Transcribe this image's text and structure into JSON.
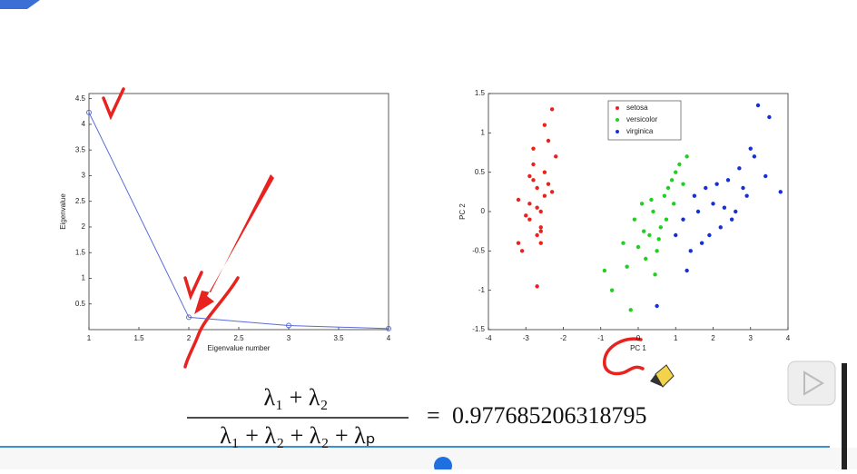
{
  "chart_data": [
    {
      "type": "line",
      "xlabel": "Eigenvalue number",
      "ylabel": "Eigenvalue",
      "x": [
        1,
        2,
        3,
        4
      ],
      "values": [
        4.23,
        0.24,
        0.08,
        0.02
      ],
      "color": "#5b6bd8",
      "xlim": [
        1,
        4
      ],
      "xticks": [
        1,
        1.5,
        2,
        2.5,
        3,
        3.5,
        4
      ],
      "ylim": [
        0,
        4.6
      ],
      "yticks": [
        0.5,
        1,
        1.5,
        2,
        2.5,
        3,
        3.5,
        4,
        4.5
      ]
    },
    {
      "type": "scatter",
      "xlabel": "PC 1",
      "ylabel": "PC 2",
      "legend": "top-right",
      "xlim": [
        -4,
        4
      ],
      "xticks": [
        -4,
        -3,
        -2,
        -1,
        0,
        1,
        2,
        3,
        4
      ],
      "ylim": [
        -1.5,
        1.5
      ],
      "yticks": [
        -1.5,
        -1,
        -0.5,
        0,
        0.5,
        1,
        1.5
      ],
      "series": [
        {
          "name": "setosa",
          "color": "#e8231f",
          "x": [
            -2.7,
            -2.9,
            -2.5,
            -2.6,
            -3.1,
            -2.3,
            -2.8,
            -2.4,
            -2.6,
            -3.2,
            -2.7,
            -2.5,
            -2.9,
            -2.2,
            -2.8,
            -2.6,
            -3.0,
            -2.4,
            -2.7,
            -2.5,
            -2.3,
            -2.9,
            -2.6,
            -2.8,
            -3.2,
            -2.7
          ],
          "values": [
            0.3,
            0.1,
            0.5,
            -0.2,
            -0.5,
            1.3,
            0.6,
            0.9,
            0.0,
            0.15,
            -0.3,
            0.2,
            -0.1,
            0.7,
            0.4,
            -0.4,
            -0.05,
            0.35,
            -0.95,
            1.1,
            0.25,
            0.45,
            -0.25,
            0.8,
            -0.4,
            0.05
          ]
        },
        {
          "name": "versicolor",
          "color": "#1fd11f",
          "x": [
            -0.9,
            -0.7,
            -0.4,
            -0.1,
            0.1,
            0.3,
            0.5,
            0.7,
            0.9,
            1.1,
            1.3,
            0.2,
            0.4,
            0.6,
            0.8,
            1.0,
            -0.3,
            0.0,
            0.35,
            0.75,
            1.2,
            0.55,
            0.15,
            0.95,
            0.45,
            -0.2
          ],
          "values": [
            -0.75,
            -1.0,
            -0.4,
            -0.1,
            0.1,
            -0.3,
            -0.5,
            0.2,
            0.4,
            0.6,
            0.7,
            -0.6,
            0.0,
            -0.2,
            0.3,
            0.5,
            -0.7,
            -0.45,
            0.15,
            -0.1,
            0.35,
            -0.35,
            -0.25,
            0.1,
            -0.8,
            -1.25
          ]
        },
        {
          "name": "virginica",
          "color": "#1530d8",
          "x": [
            1.2,
            1.5,
            1.8,
            2.0,
            2.2,
            2.4,
            2.6,
            2.8,
            3.0,
            3.2,
            3.5,
            3.8,
            1.4,
            1.7,
            2.1,
            2.5,
            2.9,
            3.4,
            1.3,
            2.3,
            1.9,
            2.7,
            0.5,
            1.6,
            3.1,
            1.0
          ],
          "values": [
            -0.1,
            0.2,
            0.3,
            0.1,
            -0.2,
            0.4,
            0.0,
            0.3,
            0.8,
            1.35,
            1.2,
            0.25,
            -0.5,
            -0.4,
            0.35,
            -0.1,
            0.2,
            0.45,
            -0.75,
            0.05,
            -0.3,
            0.55,
            -1.2,
            0.0,
            0.7,
            -0.3
          ]
        }
      ]
    }
  ],
  "formula": {
    "numerator": "λ₁ + λ₂",
    "denominator": "λ₁ + λ₂ + λ₂ + λₚ",
    "equals": "=",
    "result": "0.977685206318795"
  }
}
